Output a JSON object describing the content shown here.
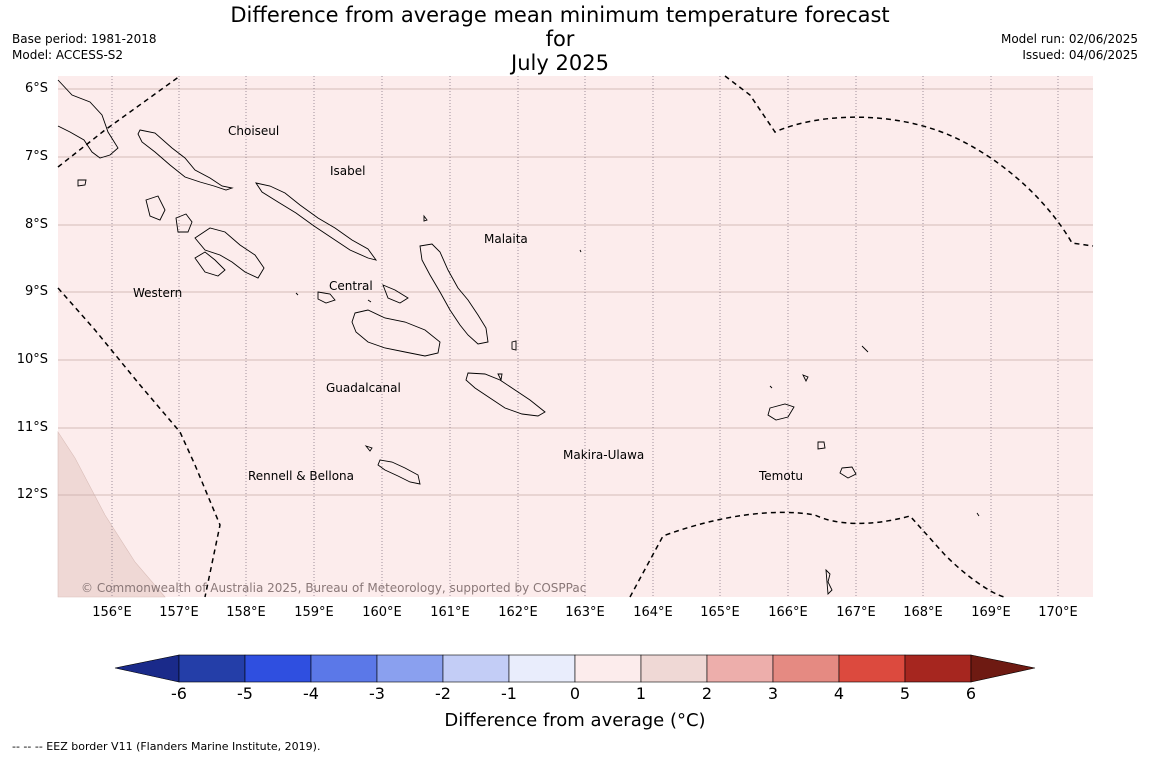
{
  "title_line1": "Difference from average mean minimum temperature forecast for",
  "title_line2": "July 2025",
  "base_period": "Base period: 1981-2018",
  "model": "Model: ACCESS-S2",
  "model_run": "Model run: 02/06/2025",
  "issued": "Issued: 04/06/2025",
  "copyright": "© Commonwealth of Australia 2025, Bureau of Meteorology, supported by COSPPac",
  "lat_labels": [
    "6°S",
    "7°S",
    "8°S",
    "9°S",
    "10°S",
    "11°S",
    "12°S"
  ],
  "lon_labels": [
    "156°E",
    "157°E",
    "158°E",
    "159°E",
    "160°E",
    "161°E",
    "162°E",
    "163°E",
    "164°E",
    "165°E",
    "166°E",
    "167°E",
    "168°E",
    "169°E",
    "170°E"
  ],
  "regions": [
    "Choiseul",
    "Isabel",
    "Malaita",
    "Western",
    "Central",
    "Guadalcanal",
    "Makira-Ulawa",
    "Rennell & Bellona",
    "Temotu"
  ],
  "colorbar": {
    "ticks": [
      "-6",
      "-5",
      "-4",
      "-3",
      "-2",
      "-1",
      "0",
      "1",
      "2",
      "3",
      "4",
      "5",
      "6"
    ],
    "colors": [
      "#1a2a8a",
      "#243ea8",
      "#2f4fe0",
      "#5b78e8",
      "#8aa0ef",
      "#c3cdf6",
      "#e9edfc",
      "#fcecec",
      "#efd8d5",
      "#edaeab",
      "#e58a82",
      "#dc4a3e",
      "#a6261f",
      "#6e1a12"
    ],
    "label": "Difference from average (°C)"
  },
  "map_fill_colors": {
    "main": "#fcecec",
    "southwest": "#efd8d5"
  },
  "legend_note": "--  --  -- EEZ border V11 (Flanders Marine Institute, 2019)."
}
